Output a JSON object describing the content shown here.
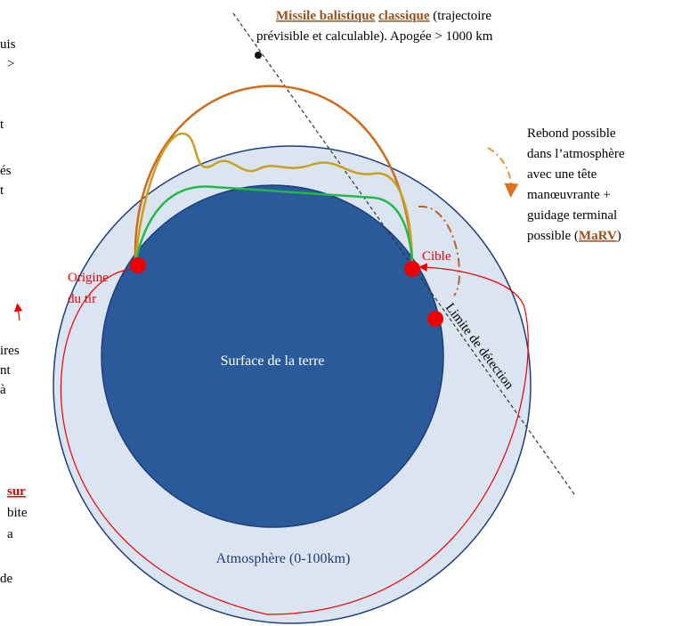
{
  "header": {
    "term1": "Missile balistique",
    "term2": "classique",
    "rest1": "(trajectoire",
    "line2": "prévisible et calculable). Apogée > 1000 km"
  },
  "note": {
    "lines": [
      "Rebond possible",
      "dans l’atmosphère",
      "avec une tête",
      "manœuvrante +",
      "guidage terminal"
    ],
    "last_before": "possible (",
    "last_term": "MaRV",
    "last_after": ")"
  },
  "labels": {
    "origin": [
      "Origine",
      "du tir"
    ],
    "target": "Cible",
    "surface": "Surface de la terre",
    "atmosphere": "Atmosphère (0-100km)",
    "detection": "Limite de détection"
  },
  "left_fragments": [
    "uis",
    ">",
    "t",
    "és",
    "t",
    "ires",
    "nt",
    "à",
    "sur",
    "bite",
    "a",
    "de"
  ]
}
